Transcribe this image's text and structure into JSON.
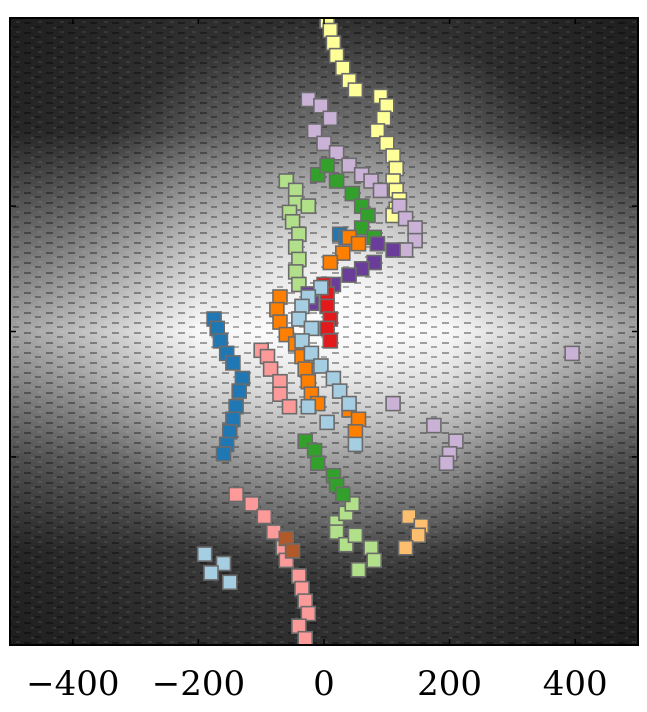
{
  "chart_data": {
    "type": "scatter",
    "title": "",
    "xlabel": "",
    "ylabel": "",
    "xlim": [
      -500,
      500
    ],
    "ylim": [
      -500,
      500
    ],
    "x_ticks": [
      -400,
      -200,
      0,
      200,
      400
    ],
    "x_tick_labels": [
      "−400",
      "−200",
      "0",
      "200",
      "400"
    ],
    "y_ticks": [
      -200,
      0,
      200
    ],
    "grid": false,
    "legend": "none",
    "marker": "square",
    "background": "grayscale image, bright horizontal band centred at y = 0",
    "series": [
      {
        "color": "#ffff99",
        "points": [
          [
            5,
            495
          ],
          [
            10,
            480
          ],
          [
            15,
            460
          ],
          [
            20,
            440
          ],
          [
            30,
            420
          ],
          [
            40,
            400
          ],
          [
            50,
            385
          ],
          [
            90,
            375
          ],
          [
            100,
            360
          ],
          [
            95,
            340
          ],
          [
            85,
            320
          ],
          [
            100,
            300
          ],
          [
            110,
            280
          ],
          [
            115,
            260
          ],
          [
            110,
            240
          ],
          [
            115,
            225
          ],
          [
            120,
            210
          ],
          [
            115,
            195
          ],
          [
            110,
            185
          ]
        ]
      },
      {
        "color": "#cab2d6",
        "points": [
          [
            -25,
            370
          ],
          [
            -5,
            360
          ],
          [
            10,
            340
          ],
          [
            -15,
            320
          ],
          [
            0,
            300
          ],
          [
            20,
            285
          ],
          [
            40,
            265
          ],
          [
            60,
            250
          ],
          [
            75,
            240
          ],
          [
            90,
            225
          ],
          [
            120,
            200
          ],
          [
            130,
            180
          ],
          [
            145,
            165
          ],
          [
            145,
            145
          ],
          [
            130,
            130
          ],
          [
            395,
            -35
          ],
          [
            110,
            -115
          ],
          [
            175,
            -150
          ],
          [
            210,
            -175
          ],
          [
            200,
            -195
          ],
          [
            195,
            -210
          ]
        ]
      },
      {
        "color": "#b2df8a",
        "points": [
          [
            -60,
            240
          ],
          [
            -45,
            225
          ],
          [
            -45,
            205
          ],
          [
            -55,
            190
          ],
          [
            -25,
            200
          ],
          [
            -50,
            175
          ],
          [
            -40,
            155
          ],
          [
            -45,
            135
          ],
          [
            -40,
            115
          ],
          [
            -45,
            95
          ],
          [
            -40,
            75
          ],
          [
            20,
            -305
          ],
          [
            35,
            -290
          ],
          [
            45,
            -275
          ],
          [
            20,
            -320
          ],
          [
            35,
            -340
          ],
          [
            50,
            -325
          ],
          [
            75,
            -345
          ],
          [
            80,
            -365
          ],
          [
            55,
            -380
          ]
        ]
      },
      {
        "color": "#33a02c",
        "points": [
          [
            -10,
            250
          ],
          [
            5,
            265
          ],
          [
            20,
            240
          ],
          [
            45,
            220
          ],
          [
            60,
            200
          ],
          [
            70,
            185
          ],
          [
            60,
            165
          ],
          [
            80,
            150
          ],
          [
            -30,
            -175
          ],
          [
            -15,
            -190
          ],
          [
            -10,
            -210
          ],
          [
            15,
            -230
          ],
          [
            20,
            -245
          ],
          [
            30,
            -260
          ]
        ]
      },
      {
        "color": "#1f78b4",
        "points": [
          [
            25,
            155
          ],
          [
            35,
            150
          ],
          [
            -175,
            20
          ],
          [
            -170,
            5
          ],
          [
            -165,
            -15
          ],
          [
            -155,
            -35
          ],
          [
            -145,
            -50
          ],
          [
            -130,
            -75
          ],
          [
            -135,
            -95
          ],
          [
            -140,
            -120
          ],
          [
            -145,
            -140
          ],
          [
            -150,
            -160
          ],
          [
            -155,
            -180
          ],
          [
            -160,
            -195
          ]
        ]
      },
      {
        "color": "#6a3d9a",
        "points": [
          [
            85,
            140
          ],
          [
            110,
            130
          ],
          [
            80,
            110
          ],
          [
            60,
            100
          ],
          [
            40,
            90
          ],
          [
            15,
            75
          ],
          [
            -25,
            60
          ],
          [
            -20,
            45
          ]
        ]
      },
      {
        "color": "#ff7f00",
        "points": [
          [
            40,
            150
          ],
          [
            55,
            140
          ],
          [
            30,
            125
          ],
          [
            10,
            110
          ],
          [
            -70,
            55
          ],
          [
            -75,
            35
          ],
          [
            -70,
            15
          ],
          [
            -60,
            -5
          ],
          [
            -45,
            -20
          ],
          [
            -35,
            -40
          ],
          [
            -30,
            -60
          ],
          [
            -25,
            -80
          ],
          [
            -20,
            -100
          ],
          [
            -10,
            -115
          ],
          [
            40,
            -125
          ],
          [
            55,
            -140
          ],
          [
            50,
            -160
          ]
        ]
      },
      {
        "color": "#e31a1c",
        "points": [
          [
            0,
            75
          ],
          [
            5,
            60
          ],
          [
            5,
            40
          ],
          [
            10,
            20
          ],
          [
            5,
            5
          ],
          [
            10,
            -15
          ]
        ]
      },
      {
        "color": "#a6cee3",
        "points": [
          [
            -5,
            70
          ],
          [
            -25,
            55
          ],
          [
            -35,
            40
          ],
          [
            -40,
            20
          ],
          [
            -20,
            5
          ],
          [
            -35,
            -15
          ],
          [
            -20,
            -35
          ],
          [
            -5,
            -55
          ],
          [
            15,
            -75
          ],
          [
            25,
            -95
          ],
          [
            40,
            -115
          ],
          [
            -25,
            -120
          ],
          [
            5,
            -145
          ],
          [
            50,
            -180
          ],
          [
            -190,
            -355
          ],
          [
            -160,
            -370
          ],
          [
            -180,
            -385
          ],
          [
            -150,
            -400
          ]
        ]
      },
      {
        "color": "#fb9a99",
        "points": [
          [
            -100,
            -30
          ],
          [
            -90,
            -40
          ],
          [
            -85,
            -60
          ],
          [
            -70,
            -80
          ],
          [
            -70,
            -100
          ],
          [
            -55,
            -120
          ],
          [
            -140,
            -260
          ],
          [
            -115,
            -275
          ],
          [
            -95,
            -295
          ],
          [
            -80,
            -320
          ],
          [
            -65,
            -345
          ],
          [
            -60,
            -365
          ],
          [
            -40,
            -390
          ],
          [
            -35,
            -410
          ],
          [
            -30,
            -430
          ],
          [
            -25,
            -450
          ],
          [
            -40,
            -470
          ],
          [
            -30,
            -490
          ]
        ]
      },
      {
        "color": "#fdbf6f",
        "points": [
          [
            135,
            -295
          ],
          [
            155,
            -310
          ],
          [
            150,
            -325
          ],
          [
            130,
            -345
          ]
        ]
      },
      {
        "color": "#b15928",
        "points": [
          [
            -60,
            -330
          ],
          [
            -50,
            -350
          ]
        ]
      }
    ]
  }
}
